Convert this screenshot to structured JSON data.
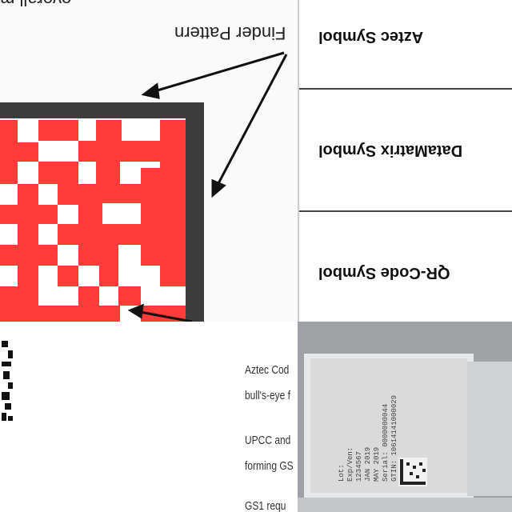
{
  "diagram": {
    "finder_label": "Finder Pattern",
    "top_text": "overall m",
    "colors": {
      "module": "#ff3b3b",
      "frame": "#3d3d3d",
      "light": "#ffffff"
    }
  },
  "table": {
    "rows": [
      {
        "label": "Aztec Symbol"
      },
      {
        "label": "DataMatrix Symbol"
      },
      {
        "label": "QR-Code Symbol"
      }
    ]
  },
  "text_column": {
    "paragraphs": [
      "Aztec Cod",
      "bull's-eye f",
      "UPCC and",
      "forming GS",
      "GS1 requ"
    ]
  },
  "photo": {
    "label_lines": [
      "Lot:",
      "Exp/Ven:",
      "1234567",
      "JAN 2019",
      "MAY 2019",
      "Serial: 0000000044",
      "GTIN: 10614141000029"
    ]
  }
}
